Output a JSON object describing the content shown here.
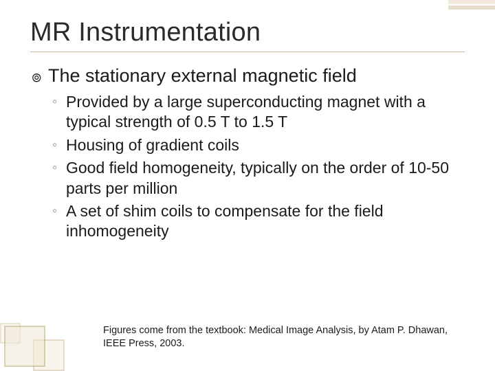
{
  "colors": {
    "background": "#ffffff",
    "text": "#1a1a1a",
    "title": "#2a2a2a",
    "rule": "#c9bb93",
    "sub_bullet": "#8a8a8a",
    "deco_border": "#b9a87a",
    "deco_fill": "#efe7d3"
  },
  "typography": {
    "title_fontsize": 38,
    "lvl1_fontsize": 27,
    "lvl2_fontsize": 23,
    "footer_fontsize": 14.5,
    "font_family": "Arial"
  },
  "title": "MR Instrumentation",
  "lvl1_bullet_glyph": "๏",
  "lvl2_bullet_glyph": "◦",
  "lvl1": {
    "text": "The stationary external magnetic field"
  },
  "sub": [
    {
      "text": "Provided by a large superconducting magnet with a typical strength of 0.5 T to 1.5 T"
    },
    {
      "text": "Housing of gradient coils"
    },
    {
      "text": "Good field homogeneity, typically on the order of 10-50 parts per million"
    },
    {
      "text": "A set of shim coils to compensate for the field inhomogeneity"
    }
  ],
  "footer": "Figures come from the textbook: Medical Image Analysis, by Atam P. Dhawan, IEEE Press, 2003."
}
